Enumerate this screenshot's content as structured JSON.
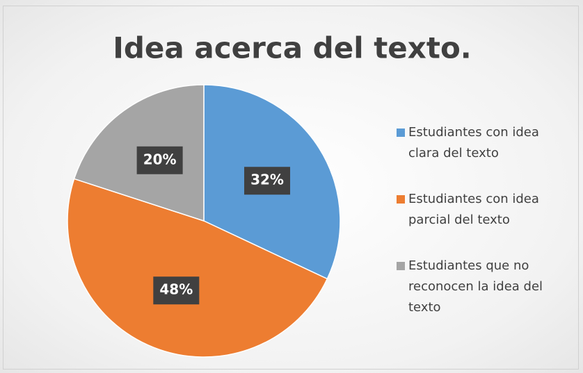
{
  "chart_data": {
    "type": "pie",
    "title": "Idea acerca del texto.",
    "categories": [
      "Estudiantes con idea clara del texto",
      "Estudiantes con idea parcial del texto",
      "Estudiantes que no reconocen la idea del texto"
    ],
    "values": [
      32,
      48,
      20
    ],
    "value_labels": [
      "32%",
      "48%",
      "20%"
    ],
    "colors": [
      "#5b9bd5",
      "#ed7d31",
      "#a5a5a5"
    ],
    "legend": "right"
  }
}
